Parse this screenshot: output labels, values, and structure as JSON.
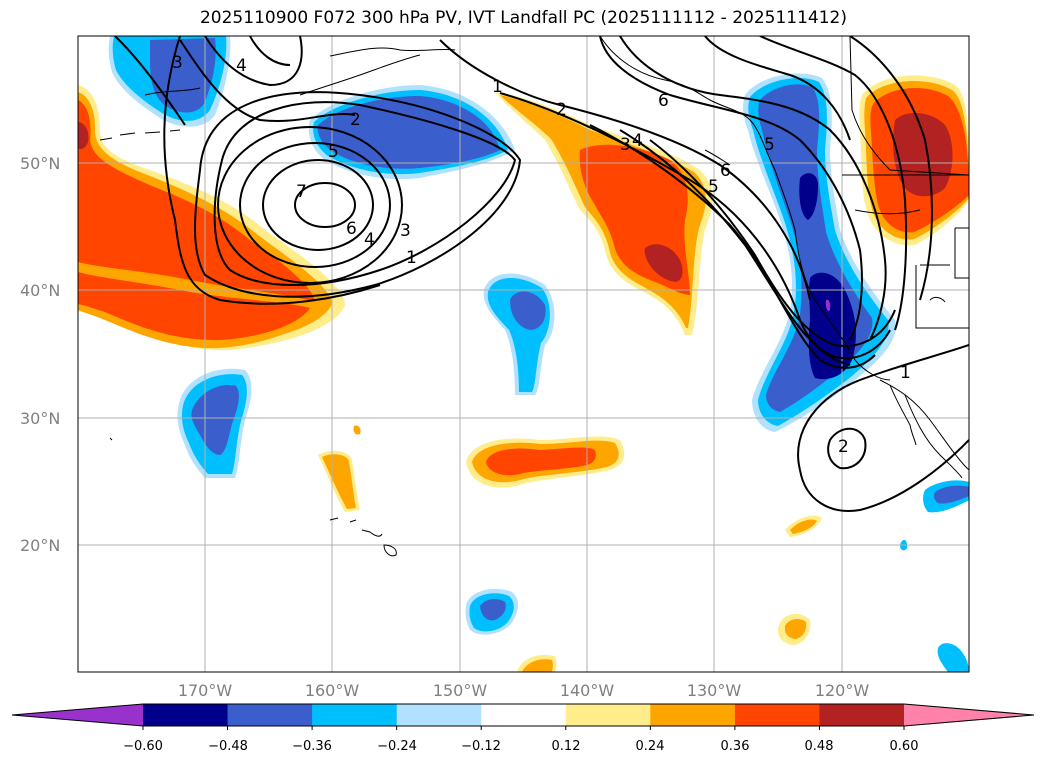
{
  "title": "2025110900 F072 300 hPa PV, IVT Landfall PC (2025111112 - 2025111412)",
  "map": {
    "lat_labels": [
      "50°N",
      "40°N",
      "30°N",
      "20°N"
    ],
    "lon_labels": [
      "170°W",
      "160°W",
      "150°W",
      "140°W",
      "130°W",
      "120°W"
    ],
    "contour_labels": [
      "3",
      "4",
      "2",
      "1",
      "5",
      "7",
      "6",
      "4",
      "3",
      "1",
      "2",
      "3",
      "4",
      "5",
      "6",
      "6",
      "5",
      "1",
      "2"
    ]
  },
  "colorbar": {
    "ticks": [
      "−0.60",
      "−0.48",
      "−0.36",
      "−0.24",
      "−0.12",
      "0.12",
      "0.24",
      "0.36",
      "0.48",
      "0.60"
    ],
    "colors": [
      "#9932CC",
      "#00008B",
      "#3A5FCD",
      "#00BFFF",
      "#B0E2FF",
      "#FFFFFF",
      "#FFEC8B",
      "#FFA500",
      "#FF4500",
      "#B22222",
      "#FF82AB"
    ]
  }
}
